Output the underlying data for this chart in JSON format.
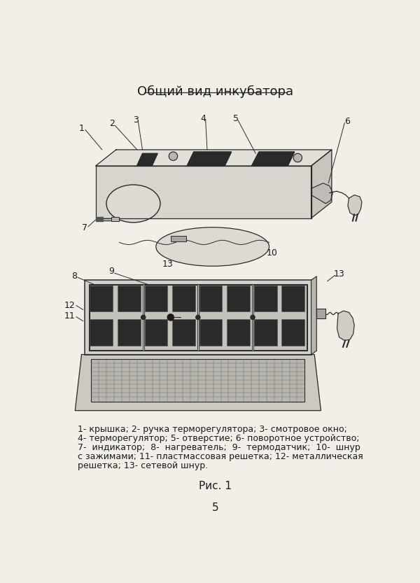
{
  "title": "Общий вид инкубатора",
  "title_fontsize": 14,
  "caption_line1": "1- крышка; 2- ручка терморегулятора; 3- смотровое окно;",
  "caption_line2": "4- терморегулятор; 5- отверстие; 6- поворотное устройство;",
  "caption_line3": "7-  индикатор;  8-  нагреватель;  9-  термодатчик;  10-  шнур",
  "caption_line4": "с зажимами; 11- пластмассовая решетка; 12- металлическая",
  "caption_line5": "решетка; 13- сетевой шнур.",
  "fig_label": "Рис. 1",
  "page_number": "5",
  "bg_color": "#f2efe9",
  "line_color": "#2a2a2a",
  "text_color": "#1a1a1a"
}
